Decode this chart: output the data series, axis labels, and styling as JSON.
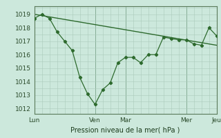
{
  "line1_x": [
    0,
    1,
    2,
    3,
    4,
    5,
    6,
    7,
    8,
    9,
    10,
    11,
    12,
    13,
    14,
    15,
    16,
    17,
    18,
    19,
    20,
    21,
    22,
    23,
    24
  ],
  "line1_y": [
    1018.7,
    1019.0,
    1018.7,
    1017.7,
    1017.0,
    1016.3,
    1014.3,
    1013.1,
    1012.3,
    1013.4,
    1013.9,
    1015.4,
    1015.8,
    1015.8,
    1015.4,
    1016.0,
    1016.0,
    1017.3,
    1017.2,
    1017.1,
    1017.1,
    1016.8,
    1016.7,
    1018.0,
    1017.4
  ],
  "line2_x": [
    0,
    24
  ],
  "line2_y": [
    1019.0,
    1016.7
  ],
  "xtick_positions": [
    0,
    8,
    12,
    20,
    24
  ],
  "xtick_labels": [
    "Lun",
    "Ven",
    "Mar",
    "Mer",
    "Jeu"
  ],
  "ytick_positions": [
    1012,
    1013,
    1014,
    1015,
    1016,
    1017,
    1018,
    1019
  ],
  "ylim": [
    1011.6,
    1019.6
  ],
  "xlim": [
    0,
    24
  ],
  "xlabel": "Pression niveau de la mer( hPa )",
  "line_color": "#2d6a2d",
  "bg_color": "#cce8dc",
  "grid_color_minor": "#aacaba",
  "grid_color_major": "#88a898",
  "fig_bg": "#cce8dc"
}
